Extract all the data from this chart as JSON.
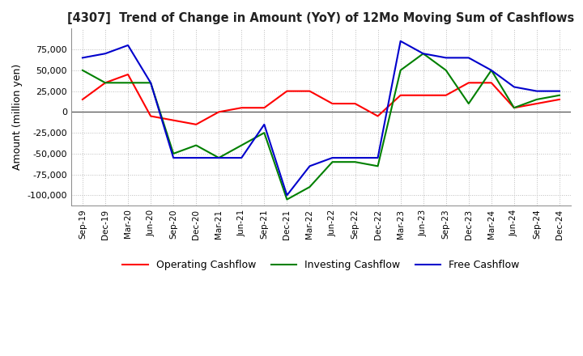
{
  "title": "[4307]  Trend of Change in Amount (YoY) of 12Mo Moving Sum of Cashflows",
  "ylabel": "Amount (million yen)",
  "x_labels": [
    "Sep-19",
    "Dec-19",
    "Mar-20",
    "Jun-20",
    "Sep-20",
    "Dec-20",
    "Mar-21",
    "Jun-21",
    "Sep-21",
    "Dec-21",
    "Mar-22",
    "Jun-22",
    "Sep-22",
    "Dec-22",
    "Mar-23",
    "Jun-23",
    "Sep-23",
    "Dec-23",
    "Mar-24",
    "Jun-24",
    "Sep-24",
    "Dec-24"
  ],
  "operating": [
    15000,
    35000,
    45000,
    -5000,
    -10000,
    -15000,
    0,
    5000,
    5000,
    25000,
    25000,
    10000,
    10000,
    -5000,
    20000,
    20000,
    20000,
    35000,
    35000,
    5000,
    10000,
    15000
  ],
  "investing": [
    50000,
    35000,
    35000,
    35000,
    -50000,
    -40000,
    -55000,
    -40000,
    -25000,
    -105000,
    -90000,
    -60000,
    -60000,
    -65000,
    50000,
    70000,
    50000,
    10000,
    50000,
    5000,
    15000,
    20000
  ],
  "free": [
    65000,
    70000,
    80000,
    35000,
    -55000,
    -55000,
    -55000,
    -55000,
    -15000,
    -100000,
    -65000,
    -55000,
    -55000,
    -55000,
    85000,
    70000,
    65000,
    65000,
    50000,
    30000,
    25000,
    25000
  ],
  "operating_color": "#ff0000",
  "investing_color": "#008000",
  "free_color": "#0000cc",
  "ylim": [
    -112000,
    100000
  ],
  "yticks": [
    -100000,
    -75000,
    -50000,
    -25000,
    0,
    25000,
    50000,
    75000
  ],
  "grid": true,
  "legend_labels": [
    "Operating Cashflow",
    "Investing Cashflow",
    "Free Cashflow"
  ],
  "background_color": "#ffffff",
  "grid_color": "#bbbbbb"
}
